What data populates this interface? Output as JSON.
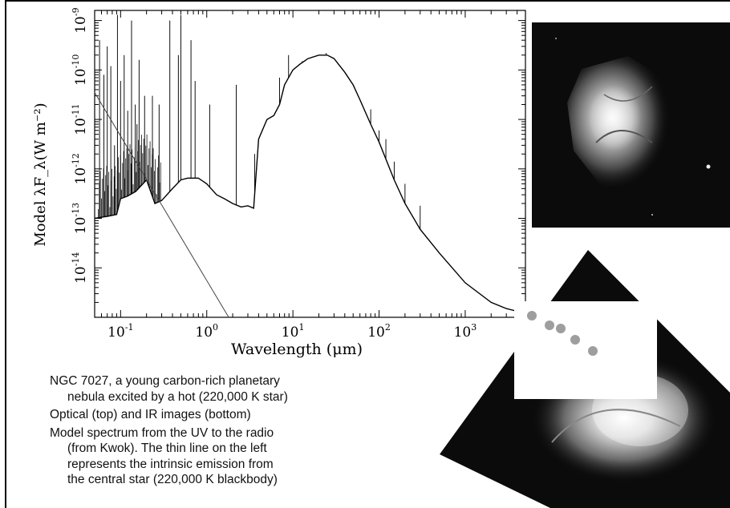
{
  "chart_data": {
    "type": "line",
    "xscale": "log",
    "yscale": "log",
    "xlim": [
      0.05,
      5000
    ],
    "ylim": [
      1e-15,
      1.6e-09
    ],
    "xlabel": "Wavelength (μm)",
    "ylabel": "Model λF_λ(W m⁻²)",
    "x_tick_labels": [
      {
        "base": "10",
        "exp": "-1",
        "value": 0.1
      },
      {
        "base": "10",
        "exp": "0",
        "value": 1
      },
      {
        "base": "10",
        "exp": "1",
        "value": 10
      },
      {
        "base": "10",
        "exp": "2",
        "value": 100
      },
      {
        "base": "10",
        "exp": "3",
        "value": 1000
      }
    ],
    "y_tick_labels": [
      {
        "base": "10",
        "exp": "-14",
        "value": 1e-14
      },
      {
        "base": "10",
        "exp": "-13",
        "value": 1e-13
      },
      {
        "base": "10",
        "exp": "-12",
        "value": 1e-12
      },
      {
        "base": "10",
        "exp": "-11",
        "value": 1e-11
      },
      {
        "base": "10",
        "exp": "-10",
        "value": 1e-10
      },
      {
        "base": "10",
        "exp": "-9",
        "value": 1e-09
      }
    ],
    "series": [
      {
        "role": "nebular continuum",
        "x": [
          0.05,
          0.07,
          0.09,
          0.1,
          0.12,
          0.15,
          0.2,
          0.25,
          0.3,
          0.4,
          0.5,
          0.6,
          0.8,
          1.0,
          1.3,
          1.6,
          2.0,
          2.5,
          3.0,
          3.5,
          4.0,
          5.0,
          6.0,
          7.0,
          8.0,
          10.0,
          12.0,
          15.0,
          20.0,
          25.0,
          30.0,
          40.0,
          50.0,
          60.0,
          80.0,
          100.0,
          150.0,
          200.0,
          300.0,
          500.0,
          1000.0,
          2000.0,
          3000.0,
          5000.0
        ],
        "y": [
          1e-13,
          1.1e-13,
          1.2e-13,
          2.5e-13,
          2.8e-13,
          3.5e-13,
          6e-13,
          2e-13,
          2.3e-13,
          4e-13,
          6e-13,
          6.5e-13,
          6.5e-13,
          5e-13,
          3e-13,
          2.5e-13,
          2e-13,
          1.7e-13,
          1.8e-13,
          1.6e-13,
          4e-12,
          1e-11,
          1.2e-11,
          2e-11,
          5e-11,
          1e-10,
          1.3e-10,
          1.7e-10,
          2e-10,
          2e-10,
          1.7e-10,
          9e-11,
          5e-11,
          2.5e-11,
          8e-12,
          3.5e-12,
          6e-13,
          2e-13,
          6e-14,
          2e-14,
          5e-15,
          2e-15,
          1.5e-15,
          1.2e-15
        ]
      },
      {
        "role": "central star blackbody (220,000 K)",
        "x": [
          0.05,
          1.8
        ],
        "y": [
          3.5e-11,
          1e-15
        ]
      }
    ],
    "emission_lines": [
      {
        "x": 0.057,
        "y": 4e-10
      },
      {
        "x": 0.064,
        "y": 8e-11
      },
      {
        "x": 0.07,
        "y": 3e-10
      },
      {
        "x": 0.077,
        "y": 1.2e-10
      },
      {
        "x": 0.085,
        "y": 3e-12
      },
      {
        "x": 0.092,
        "y": 1.3e-09
      },
      {
        "x": 0.1,
        "y": 6e-11
      },
      {
        "x": 0.11,
        "y": 2e-10
      },
      {
        "x": 0.121,
        "y": 1.5e-11
      },
      {
        "x": 0.134,
        "y": 1e-09
      },
      {
        "x": 0.148,
        "y": 2e-11
      },
      {
        "x": 0.155,
        "y": 8e-12
      },
      {
        "x": 0.164,
        "y": 1.6e-10
      },
      {
        "x": 0.19,
        "y": 3e-11
      },
      {
        "x": 0.234,
        "y": 3e-11
      },
      {
        "x": 0.28,
        "y": 2e-11
      },
      {
        "x": 0.3727,
        "y": 1e-09
      },
      {
        "x": 0.4686,
        "y": 2e-10
      },
      {
        "x": 0.5007,
        "y": 1.3e-09
      },
      {
        "x": 0.6563,
        "y": 4e-10
      },
      {
        "x": 0.7325,
        "y": 6e-11
      },
      {
        "x": 1.083,
        "y": 2e-11
      },
      {
        "x": 2.2,
        "y": 5e-11
      },
      {
        "x": 3.6,
        "y": 2e-12
      },
      {
        "x": 7.0,
        "y": 7e-11
      },
      {
        "x": 8.9,
        "y": 2e-10
      },
      {
        "x": 12.8,
        "y": 1.5e-10
      },
      {
        "x": 24.3,
        "y": 2.2e-10
      },
      {
        "x": 80.0,
        "y": 1.6e-11
      },
      {
        "x": 100.0,
        "y": 6e-12
      },
      {
        "x": 120.0,
        "y": 4e-12
      },
      {
        "x": 150.0,
        "y": 1.4e-12
      },
      {
        "x": 200.0,
        "y": 5e-13
      },
      {
        "x": 300.0,
        "y": 1.8e-13
      }
    ],
    "grid": false,
    "legend": "none"
  },
  "caption": {
    "line1_a": "NGC 7027,  a young carbon-rich planetary",
    "line1_b": "nebula excited by a hot (220,000 K star)",
    "line2": "Optical (top) and IR images (bottom)",
    "line3_a": "Model spectrum from the UV to the radio",
    "line3_b": "(from Kwok).  The thin line on the left",
    "line3_c": "represents the  intrinsic emission from",
    "line3_d": "the central star (220,000 K blackbody)"
  },
  "colors": {
    "image_bg": "#0b0b0b",
    "dots": "#9e9e9e"
  }
}
